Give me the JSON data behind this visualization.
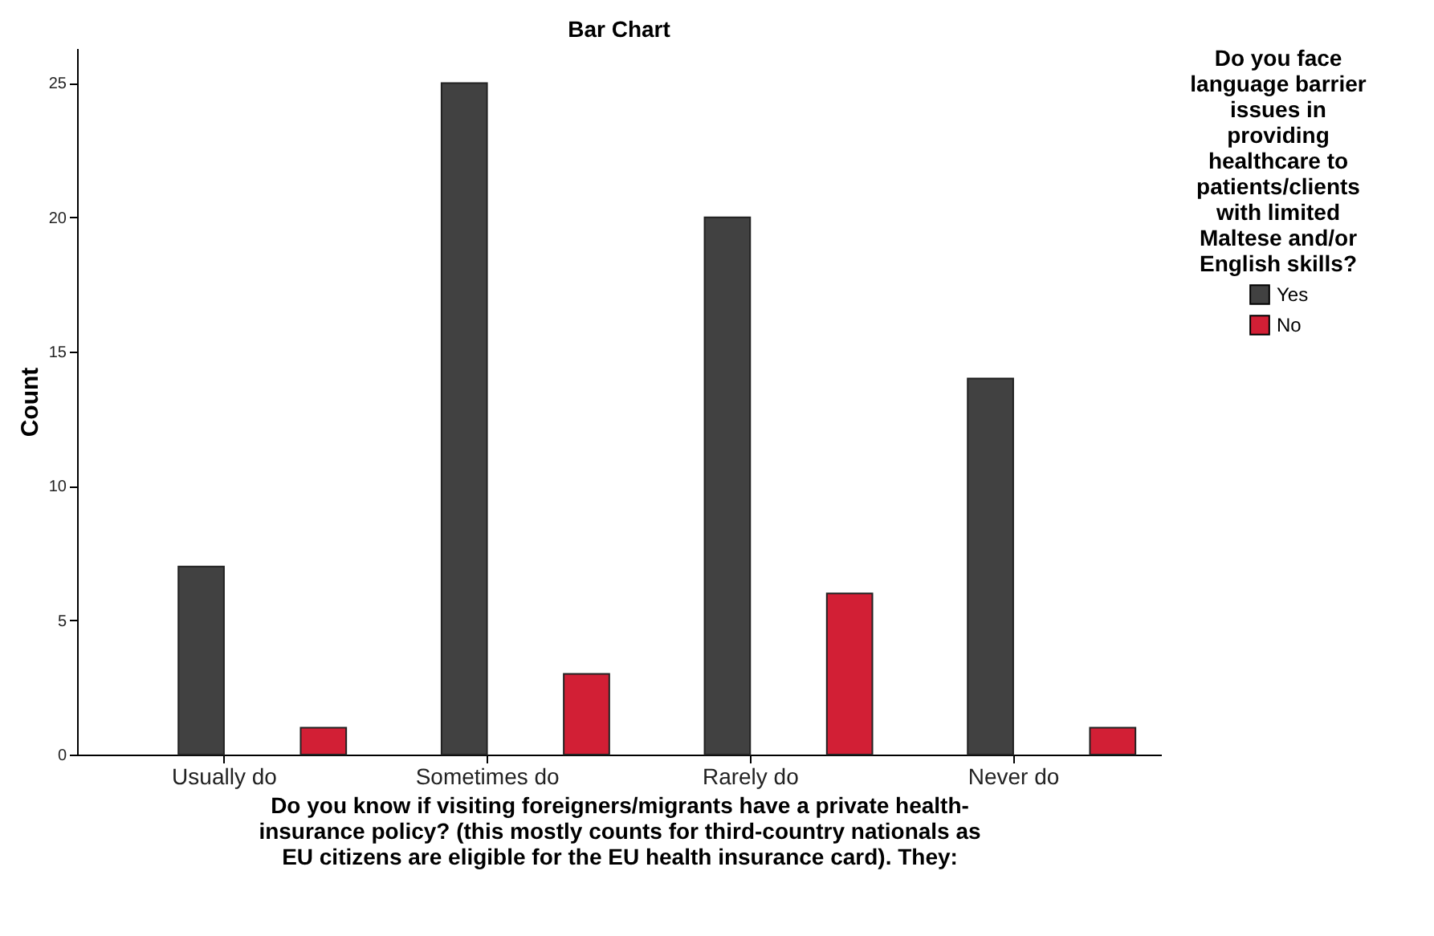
{
  "chart_data": {
    "type": "bar",
    "title": "Bar Chart",
    "categories": [
      "Usually do",
      "Sometimes do",
      "Rarely do",
      "Never do"
    ],
    "series": [
      {
        "name": "Yes",
        "color": "#414141",
        "values": [
          7,
          25,
          20,
          14
        ]
      },
      {
        "name": "No",
        "color": "#d21f35",
        "values": [
          1,
          3,
          6,
          1
        ]
      }
    ],
    "xlabel": "Do you know if visiting foreigners/migrants have a private health-insurance policy? (this mostly counts for third-country nationals as EU citizens are eligible for the EU health insurance card). They:",
    "ylabel": "Count",
    "legend_title": "Do you face language barrier issues in providing healthcare to patients/clients with limited Maltese and/or English skills?",
    "legend": "right",
    "ylim": [
      0,
      26.3
    ],
    "yticks": [
      0,
      5,
      10,
      15,
      20,
      25
    ],
    "grid": false
  }
}
